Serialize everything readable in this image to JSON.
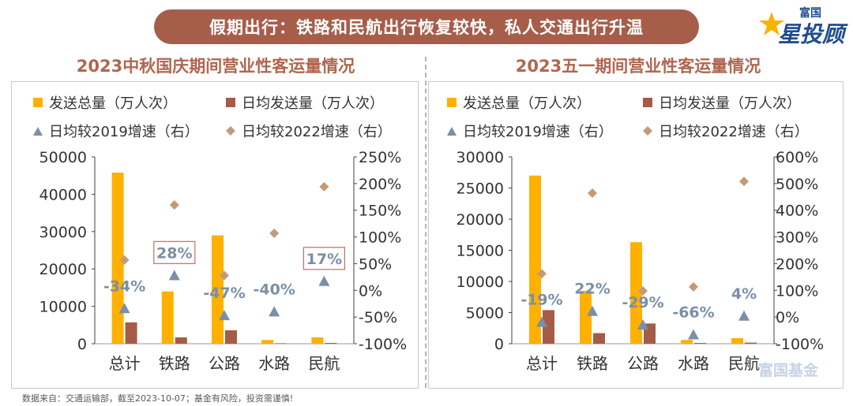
{
  "banner": {
    "title": "假期出行：铁路和民航出行恢复较快，私人交通出行升温"
  },
  "logo": {
    "small": "富国",
    "big": "星投顾"
  },
  "watermark": "富国基金",
  "footer": "数据来自：交通运输部，截至2023-10-07；基金有风险，投资需谨慎!",
  "colors": {
    "total": "#ffb000",
    "daily": "#a45c48",
    "vs2019": "#7a8fa8",
    "vs2022": "#c39a78",
    "axis": "#404040"
  },
  "chart_data": [
    {
      "type": "bar",
      "title": "2023中秋国庆期间营业性客运量情况",
      "categories": [
        "总计",
        "铁路",
        "公路",
        "水路",
        "民航"
      ],
      "legend": [
        "发送总量（万人次）",
        "日均发送量（万人次）",
        "日均较2019增速（右）",
        "日均较2022增速（右）"
      ],
      "series": [
        {
          "name": "发送总量（万人次）",
          "axis": "left",
          "values": [
            45800,
            14000,
            29000,
            1000,
            1700
          ]
        },
        {
          "name": "日均发送量（万人次）",
          "axis": "left",
          "values": [
            5700,
            1700,
            3600,
            130,
            210
          ]
        },
        {
          "name": "日均较2019增速（右）",
          "axis": "right",
          "marker": "triangle",
          "values": [
            -34,
            28,
            -47,
            -40,
            17
          ]
        },
        {
          "name": "日均较2022增速（右）",
          "axis": "right",
          "marker": "diamond",
          "values": [
            57,
            160,
            28,
            107,
            194
          ]
        }
      ],
      "point_labels": [
        "-34%",
        "28%",
        "-47%",
        "-40%",
        "17%"
      ],
      "boxed_labels": [
        1,
        4
      ],
      "ylim_left": [
        0,
        50000
      ],
      "yticks_left": [
        "0",
        "10000",
        "20000",
        "30000",
        "40000",
        "50000"
      ],
      "ylim_right": [
        -100,
        250
      ],
      "yticks_right": [
        "-100%",
        "-50%",
        "0%",
        "50%",
        "100%",
        "150%",
        "200%",
        "250%"
      ]
    },
    {
      "type": "bar",
      "title": "2023五一期间营业性客运量情况",
      "categories": [
        "总计",
        "铁路",
        "公路",
        "水路",
        "民航"
      ],
      "legend": [
        "发送总量（万人次）",
        "日均发送量（万人次）",
        "日均较2019增速（右）",
        "日均较2022增速（右）"
      ],
      "series": [
        {
          "name": "发送总量（万人次）",
          "axis": "left",
          "values": [
            27000,
            8500,
            16300,
            600,
            900
          ]
        },
        {
          "name": "日均发送量（万人次）",
          "axis": "left",
          "values": [
            5400,
            1700,
            3250,
            120,
            180
          ]
        },
        {
          "name": "日均较2019增速（右）",
          "axis": "right",
          "marker": "triangle",
          "values": [
            -19,
            22,
            -29,
            -66,
            4
          ]
        },
        {
          "name": "日均较2022增速（右）",
          "axis": "right",
          "marker": "diamond",
          "values": [
            162,
            464,
            98,
            113,
            508
          ]
        }
      ],
      "point_labels": [
        "-19%",
        "22%",
        "-29%",
        "-66%",
        "4%"
      ],
      "boxed_labels": [],
      "ylim_left": [
        0,
        30000
      ],
      "yticks_left": [
        "0",
        "5000",
        "10000",
        "15000",
        "20000",
        "25000",
        "30000"
      ],
      "ylim_right": [
        -100,
        600
      ],
      "yticks_right": [
        "-100%",
        "0%",
        "100%",
        "200%",
        "300%",
        "400%",
        "500%",
        "600%"
      ]
    }
  ]
}
